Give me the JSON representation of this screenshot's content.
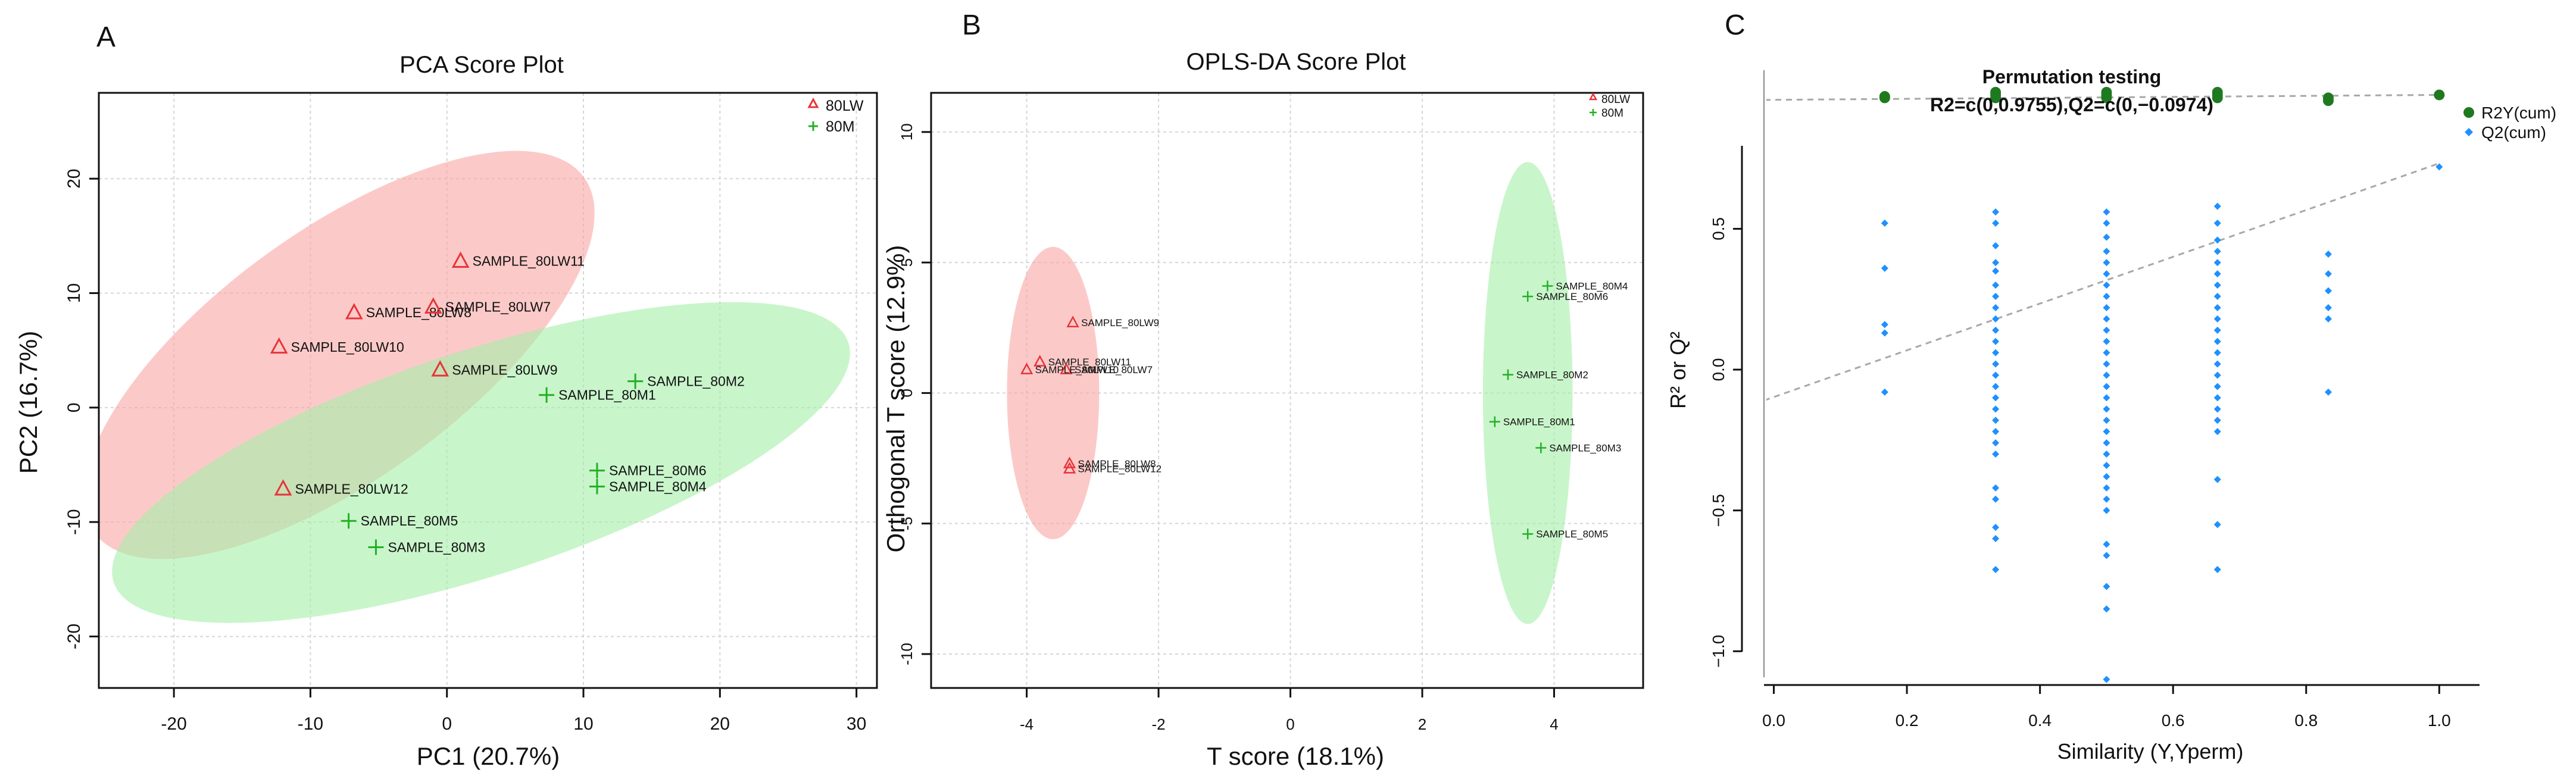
{
  "chart_data": [
    {
      "panel_label": "A",
      "type": "scatter",
      "title": "PCA Score Plot",
      "xlabel": "PC1 (20.7%)",
      "ylabel": "PC2 (16.7%)",
      "xlim": [
        -25.5,
        31.5
      ],
      "ylim": [
        -24.5,
        27.5
      ],
      "xticks": [
        -20,
        -10,
        0,
        10,
        20,
        30
      ],
      "yticks": [
        -20,
        -10,
        0,
        10,
        20
      ],
      "grid": true,
      "legend": {
        "position": "top-right",
        "entries": [
          {
            "label": "80LW",
            "marker": "triangle",
            "color": "#e8343a"
          },
          {
            "label": "80M",
            "marker": "plus",
            "color": "#22b024"
          }
        ]
      },
      "ellipses": [
        {
          "group": "80LW",
          "cx": -7.9,
          "cy": 4.6,
          "rx": 23.8,
          "ry": 10.1,
          "angle_deg": 43,
          "color": "#f9a6a3"
        },
        {
          "group": "80M",
          "cx": 2.5,
          "cy": -4.8,
          "rx": 28.9,
          "ry": 9.6,
          "angle_deg": 22,
          "color": "#a5eea8"
        }
      ],
      "series": [
        {
          "name": "80LW",
          "marker": "triangle",
          "color": "#e8343a",
          "points": [
            {
              "label": "SAMPLE_80LW11",
              "x": 1.0,
              "y": 12.8
            },
            {
              "label": "SAMPLE_80LW8",
              "x": -6.8,
              "y": 8.3
            },
            {
              "label": "SAMPLE_80LW7",
              "x": -1.0,
              "y": 8.8
            },
            {
              "label": "SAMPLE_80LW10",
              "x": -12.3,
              "y": 5.3
            },
            {
              "label": "SAMPLE_80LW9",
              "x": -0.5,
              "y": 3.3
            },
            {
              "label": "SAMPLE_80LW12",
              "x": -12.0,
              "y": -7.1
            }
          ]
        },
        {
          "name": "80M",
          "marker": "plus",
          "color": "#22b024",
          "points": [
            {
              "label": "SAMPLE_80M2",
              "x": 13.8,
              "y": 2.3
            },
            {
              "label": "SAMPLE_80M1",
              "x": 7.3,
              "y": 1.1
            },
            {
              "label": "SAMPLE_80M6",
              "x": 11.0,
              "y": -5.5
            },
            {
              "label": "SAMPLE_80M4",
              "x": 11.0,
              "y": -6.9
            },
            {
              "label": "SAMPLE_80M5",
              "x": -7.2,
              "y": -9.9
            },
            {
              "label": "SAMPLE_80M3",
              "x": -5.2,
              "y": -12.2
            }
          ]
        }
      ]
    },
    {
      "panel_label": "B",
      "type": "scatter",
      "title": "OPLS-DA Score Plot",
      "xlabel": "T score (18.1%)",
      "ylabel": "Orthogonal T score (12.9%)",
      "xlim": [
        -5.45,
        5.35
      ],
      "ylim": [
        -11.3,
        11.5
      ],
      "xticks": [
        -4,
        -2,
        0,
        2,
        4
      ],
      "yticks": [
        -10,
        -5,
        0,
        5,
        10
      ],
      "grid": true,
      "legend": {
        "position": "top-right",
        "entries": [
          {
            "label": "80LW",
            "marker": "triangle",
            "color": "#e8343a"
          },
          {
            "label": "80M",
            "marker": "plus",
            "color": "#22b024"
          }
        ]
      },
      "ellipses": [
        {
          "group": "80LW",
          "cx": -3.6,
          "cy": 0.0,
          "rx": 0.7,
          "ry": 5.6,
          "angle_deg": 0,
          "color": "#f9a6a3"
        },
        {
          "group": "80M",
          "cx": 3.6,
          "cy": 0.0,
          "rx": 0.68,
          "ry": 8.85,
          "angle_deg": 0,
          "color": "#a5eea8"
        }
      ],
      "series": [
        {
          "name": "80LW",
          "marker": "triangle",
          "color": "#e8343a",
          "points": [
            {
              "label": "SAMPLE_80LW9",
              "x": -3.3,
              "y": 2.7
            },
            {
              "label": "SAMPLE_80LW11",
              "x": -3.8,
              "y": 1.2
            },
            {
              "label": "SAMPLE_80LW7",
              "x": -3.4,
              "y": 0.9
            },
            {
              "label": "SAMPLE_80LW10",
              "x": -4.0,
              "y": 0.9
            },
            {
              "label": "SAMPLE_80LW8",
              "x": -3.35,
              "y": -2.7
            },
            {
              "label": "SAMPLE_80LW12",
              "x": -3.35,
              "y": -2.9
            }
          ]
        },
        {
          "name": "80M",
          "marker": "plus",
          "color": "#22b024",
          "points": [
            {
              "label": "SAMPLE_80M4",
              "x": 3.9,
              "y": 4.1
            },
            {
              "label": "SAMPLE_80M6",
              "x": 3.6,
              "y": 3.7
            },
            {
              "label": "SAMPLE_80M2",
              "x": 3.3,
              "y": 0.7
            },
            {
              "label": "SAMPLE_80M1",
              "x": 3.1,
              "y": -1.1
            },
            {
              "label": "SAMPLE_80M3",
              "x": 3.8,
              "y": -2.1
            },
            {
              "label": "SAMPLE_80M5",
              "x": 3.6,
              "y": -5.4
            }
          ]
        }
      ]
    },
    {
      "panel_label": "C",
      "type": "scatter",
      "title": "Permutation testing",
      "subtitle": "R2=c(0,0.9755),Q2=c(0,−0.0974)",
      "xlabel": "Similarity (Y,Yperm)",
      "ylabel": "R² or Q²",
      "xlim": [
        -0.03,
        1.04
      ],
      "ylim": [
        -1.16,
        1.08
      ],
      "xticks": [
        0.0,
        0.2,
        0.4,
        0.6,
        0.8,
        1.0
      ],
      "xtick_labels": [
        "0.0",
        "0.2",
        "0.4",
        "0.6",
        "0.8",
        "1.0"
      ],
      "yticks": [
        -1.0,
        -0.5,
        0.0,
        0.5
      ],
      "ytick_labels": [
        "−1.0",
        "−0.5",
        "0.0",
        "0.5"
      ],
      "grid": false,
      "legend": {
        "position": "top-right",
        "entries": [
          {
            "label": "R2Y(cum)",
            "marker": "circle",
            "color": "#1f7a1f"
          },
          {
            "label": "Q2(cum)",
            "marker": "diamond",
            "color": "#1e90ff"
          }
        ]
      },
      "regression_lines": [
        {
          "name": "R2Y(cum)",
          "intercept": 0.958,
          "slope": 0.0175
        },
        {
          "name": "Q2(cum)",
          "intercept": -0.0974,
          "slope": 0.83
        }
      ],
      "series": [
        {
          "name": "R2Y(cum)",
          "marker": "circle",
          "color": "#1f7a1f",
          "points": [
            {
              "x": 0.1667,
              "y": 0.965
            },
            {
              "x": 0.1667,
              "y": 0.97
            },
            {
              "x": 0.3333,
              "y": 0.965
            },
            {
              "x": 0.3333,
              "y": 0.975
            },
            {
              "x": 0.3333,
              "y": 0.985
            },
            {
              "x": 0.5,
              "y": 0.965
            },
            {
              "x": 0.5,
              "y": 0.975
            },
            {
              "x": 0.5,
              "y": 0.985
            },
            {
              "x": 0.6667,
              "y": 0.965
            },
            {
              "x": 0.6667,
              "y": 0.975
            },
            {
              "x": 0.6667,
              "y": 0.985
            },
            {
              "x": 0.8333,
              "y": 0.955
            },
            {
              "x": 0.8333,
              "y": 0.965
            },
            {
              "x": 1.0,
              "y": 0.9755
            }
          ]
        },
        {
          "name": "Q2(cum)",
          "marker": "diamond",
          "color": "#1e90ff",
          "points": [
            {
              "x": 0.1667,
              "y": 0.52
            },
            {
              "x": 0.1667,
              "y": 0.36
            },
            {
              "x": 0.1667,
              "y": 0.16
            },
            {
              "x": 0.1667,
              "y": 0.13
            },
            {
              "x": 0.1667,
              "y": -0.08
            },
            {
              "x": 0.3333,
              "y": 0.56
            },
            {
              "x": 0.3333,
              "y": 0.52
            },
            {
              "x": 0.3333,
              "y": 0.44
            },
            {
              "x": 0.3333,
              "y": 0.38
            },
            {
              "x": 0.3333,
              "y": 0.35
            },
            {
              "x": 0.3333,
              "y": 0.3
            },
            {
              "x": 0.3333,
              "y": 0.26
            },
            {
              "x": 0.3333,
              "y": 0.22
            },
            {
              "x": 0.3333,
              "y": 0.18
            },
            {
              "x": 0.3333,
              "y": 0.14
            },
            {
              "x": 0.3333,
              "y": 0.1
            },
            {
              "x": 0.3333,
              "y": 0.06
            },
            {
              "x": 0.3333,
              "y": 0.02
            },
            {
              "x": 0.3333,
              "y": -0.02
            },
            {
              "x": 0.3333,
              "y": -0.06
            },
            {
              "x": 0.3333,
              "y": -0.1
            },
            {
              "x": 0.3333,
              "y": -0.14
            },
            {
              "x": 0.3333,
              "y": -0.18
            },
            {
              "x": 0.3333,
              "y": -0.22
            },
            {
              "x": 0.3333,
              "y": -0.26
            },
            {
              "x": 0.3333,
              "y": -0.3
            },
            {
              "x": 0.3333,
              "y": -0.42
            },
            {
              "x": 0.3333,
              "y": -0.46
            },
            {
              "x": 0.3333,
              "y": -0.56
            },
            {
              "x": 0.3333,
              "y": -0.6
            },
            {
              "x": 0.3333,
              "y": -0.71
            },
            {
              "x": 0.5,
              "y": 0.56
            },
            {
              "x": 0.5,
              "y": 0.52
            },
            {
              "x": 0.5,
              "y": 0.47
            },
            {
              "x": 0.5,
              "y": 0.42
            },
            {
              "x": 0.5,
              "y": 0.38
            },
            {
              "x": 0.5,
              "y": 0.34
            },
            {
              "x": 0.5,
              "y": 0.3
            },
            {
              "x": 0.5,
              "y": 0.26
            },
            {
              "x": 0.5,
              "y": 0.22
            },
            {
              "x": 0.5,
              "y": 0.18
            },
            {
              "x": 0.5,
              "y": 0.14
            },
            {
              "x": 0.5,
              "y": 0.1
            },
            {
              "x": 0.5,
              "y": 0.06
            },
            {
              "x": 0.5,
              "y": 0.02
            },
            {
              "x": 0.5,
              "y": -0.02
            },
            {
              "x": 0.5,
              "y": -0.06
            },
            {
              "x": 0.5,
              "y": -0.1
            },
            {
              "x": 0.5,
              "y": -0.14
            },
            {
              "x": 0.5,
              "y": -0.18
            },
            {
              "x": 0.5,
              "y": -0.22
            },
            {
              "x": 0.5,
              "y": -0.26
            },
            {
              "x": 0.5,
              "y": -0.3
            },
            {
              "x": 0.5,
              "y": -0.34
            },
            {
              "x": 0.5,
              "y": -0.38
            },
            {
              "x": 0.5,
              "y": -0.42
            },
            {
              "x": 0.5,
              "y": -0.46
            },
            {
              "x": 0.5,
              "y": -0.5
            },
            {
              "x": 0.5,
              "y": -0.62
            },
            {
              "x": 0.5,
              "y": -0.66
            },
            {
              "x": 0.5,
              "y": -0.77
            },
            {
              "x": 0.5,
              "y": -0.85
            },
            {
              "x": 0.5,
              "y": -1.1
            },
            {
              "x": 0.6667,
              "y": 0.58
            },
            {
              "x": 0.6667,
              "y": 0.52
            },
            {
              "x": 0.6667,
              "y": 0.46
            },
            {
              "x": 0.6667,
              "y": 0.42
            },
            {
              "x": 0.6667,
              "y": 0.38
            },
            {
              "x": 0.6667,
              "y": 0.34
            },
            {
              "x": 0.6667,
              "y": 0.3
            },
            {
              "x": 0.6667,
              "y": 0.26
            },
            {
              "x": 0.6667,
              "y": 0.22
            },
            {
              "x": 0.6667,
              "y": 0.18
            },
            {
              "x": 0.6667,
              "y": 0.14
            },
            {
              "x": 0.6667,
              "y": 0.1
            },
            {
              "x": 0.6667,
              "y": 0.06
            },
            {
              "x": 0.6667,
              "y": 0.02
            },
            {
              "x": 0.6667,
              "y": -0.02
            },
            {
              "x": 0.6667,
              "y": -0.06
            },
            {
              "x": 0.6667,
              "y": -0.1
            },
            {
              "x": 0.6667,
              "y": -0.14
            },
            {
              "x": 0.6667,
              "y": -0.18
            },
            {
              "x": 0.6667,
              "y": -0.22
            },
            {
              "x": 0.6667,
              "y": -0.39
            },
            {
              "x": 0.6667,
              "y": -0.55
            },
            {
              "x": 0.6667,
              "y": -0.71
            },
            {
              "x": 0.8333,
              "y": 0.41
            },
            {
              "x": 0.8333,
              "y": 0.34
            },
            {
              "x": 0.8333,
              "y": 0.28
            },
            {
              "x": 0.8333,
              "y": 0.22
            },
            {
              "x": 0.8333,
              "y": 0.18
            },
            {
              "x": 0.8333,
              "y": -0.08
            },
            {
              "x": 1.0,
              "y": 0.72
            }
          ]
        }
      ]
    }
  ]
}
